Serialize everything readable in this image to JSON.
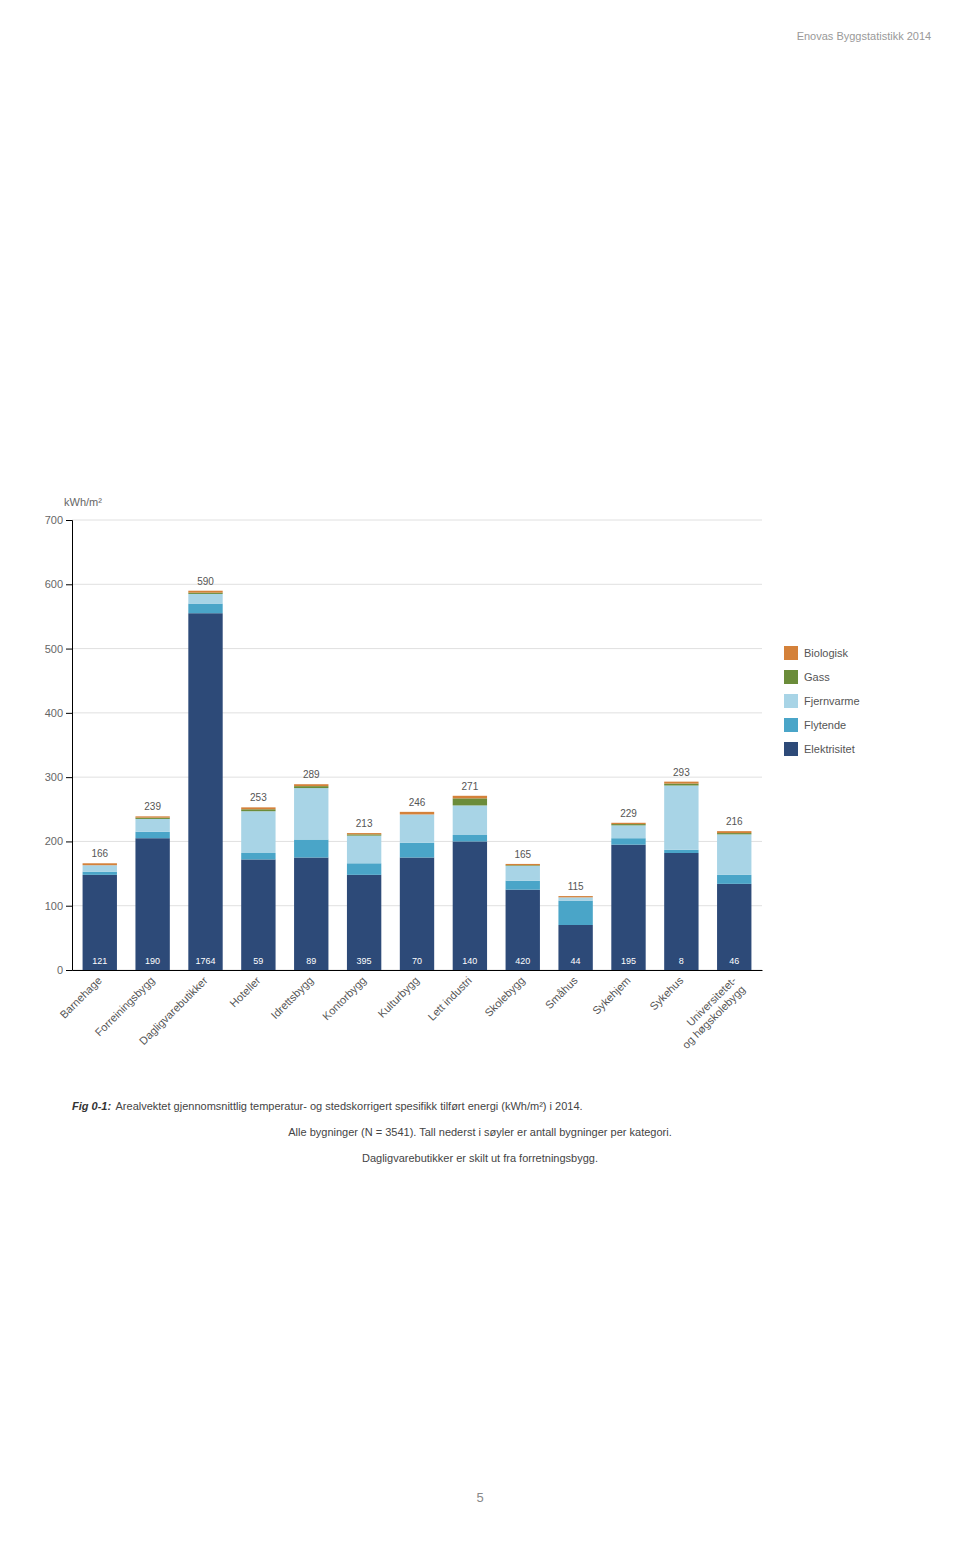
{
  "chart_data": {
    "type": "bar",
    "stacked": true,
    "categories": [
      "Barnehage",
      "Forreiningsbygg",
      "Dagligvarebutikker",
      "Hoteller",
      "Idrettsbygg",
      "Kontorbygg",
      "Kulturbygg",
      "Lett industri",
      "Skolebygg",
      "Småhus",
      "Sykehjem",
      "Sykehus",
      "Universitetet-\nog høgskolebygg"
    ],
    "series": [
      {
        "name": "Elektrisitet",
        "color": "#2d4a78",
        "values": [
          148,
          205,
          555,
          172,
          175,
          148,
          175,
          200,
          125,
          70,
          195,
          182,
          134
        ]
      },
      {
        "name": "Flytende",
        "color": "#4aa5c8",
        "values": [
          5,
          10,
          15,
          10,
          28,
          18,
          23,
          10,
          14,
          38,
          10,
          5,
          14
        ]
      },
      {
        "name": "Fjernvarme",
        "color": "#a8d4e6",
        "values": [
          10,
          20,
          15,
          65,
          80,
          43,
          44,
          46,
          23,
          5,
          20,
          100,
          63
        ]
      },
      {
        "name": "Gass",
        "color": "#6b8c3a",
        "values": [
          0,
          2,
          2,
          3,
          3,
          2,
          0,
          11,
          1,
          0,
          2,
          3,
          2
        ]
      },
      {
        "name": "Biologisk",
        "color": "#d4813a",
        "values": [
          3,
          2,
          3,
          3,
          3,
          2,
          4,
          4,
          2,
          2,
          2,
          3,
          3
        ]
      }
    ],
    "totals": [
      166,
      239,
      590,
      253,
      289,
      213,
      246,
      271,
      165,
      115,
      229,
      293,
      216
    ],
    "counts": [
      121,
      190,
      1764,
      59,
      89,
      395,
      70,
      140,
      420,
      44,
      195,
      8,
      46
    ],
    "ylabel": "kWh/m²",
    "ylim": [
      0,
      700
    ],
    "yticks": [
      0,
      100,
      200,
      300,
      400,
      500,
      600,
      700
    ],
    "grid": true,
    "legend": "right",
    "annotations": [
      "Enovas Byggstatistikk 2014",
      "Fig 0-1:",
      "Arealvektet gjennomsnittlig temperatur- og stedskorrigert spesifikk tilført energi (kWh/m²) i 2014.",
      "Alle bygninger (N = 3541). Tall nederst i søyler er antall bygninger per kategori.",
      "Dagligvarebutikker er skilt ut fra forretningsbygg.",
      "5"
    ]
  }
}
